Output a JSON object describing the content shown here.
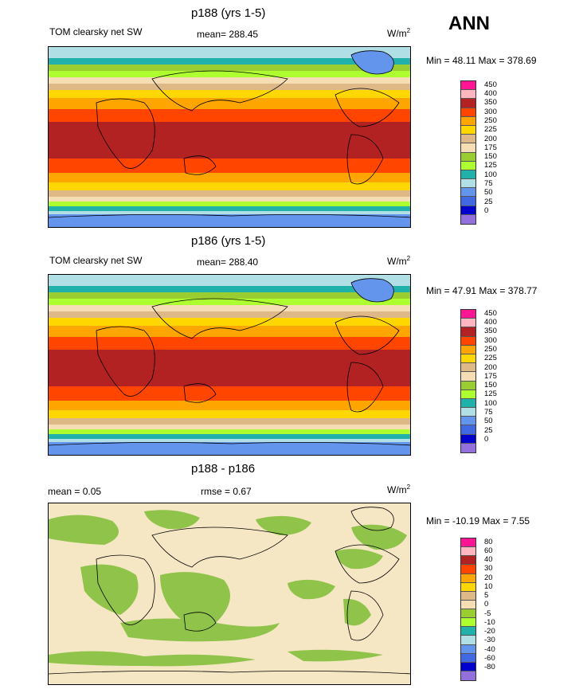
{
  "season": "ANN",
  "panels": [
    {
      "title": "p188 (yrs 1-5)",
      "left_label": "TOM clearsky net SW",
      "center_label": "mean= 288.45",
      "units_base": "W/m",
      "units_exp": "2",
      "minmax": "Min =  48.11 Max = 378.69",
      "levels": [
        "450",
        "400",
        "350",
        "300",
        "250",
        "225",
        "200",
        "175",
        "150",
        "125",
        "100",
        "75",
        "50",
        "25",
        "0"
      ],
      "colors": [
        "#ff1493",
        "#ffb6c1",
        "#b22222",
        "#ff4500",
        "#ffa500",
        "#ffd700",
        "#deb887",
        "#f5deb3",
        "#9acd32",
        "#adff2f",
        "#20b2aa",
        "#b0e0e6",
        "#6495ed",
        "#4169e1",
        "#0000cd",
        "#9370db"
      ]
    },
    {
      "title": "p186 (yrs 1-5)",
      "left_label": "TOM clearsky net SW",
      "center_label": "mean= 288.40",
      "units_base": "W/m",
      "units_exp": "2",
      "minmax": "Min =  47.91 Max = 378.77",
      "levels": [
        "450",
        "400",
        "350",
        "300",
        "250",
        "225",
        "200",
        "175",
        "150",
        "125",
        "100",
        "75",
        "50",
        "25",
        "0"
      ],
      "colors": [
        "#ff1493",
        "#ffb6c1",
        "#b22222",
        "#ff4500",
        "#ffa500",
        "#ffd700",
        "#deb887",
        "#f5deb3",
        "#9acd32",
        "#adff2f",
        "#20b2aa",
        "#b0e0e6",
        "#6495ed",
        "#4169e1",
        "#0000cd",
        "#9370db"
      ]
    },
    {
      "title": "p188 - p186",
      "left_label": "mean =   0.05",
      "center_label": "rmse =   0.67",
      "units_base": "W/m",
      "units_exp": "2",
      "minmax": "Min = -10.19 Max =   7.55",
      "levels": [
        "80",
        "60",
        "40",
        "30",
        "20",
        "10",
        "5",
        "0",
        "-5",
        "-10",
        "-20",
        "-30",
        "-40",
        "-60",
        "-80"
      ],
      "colors": [
        "#ff1493",
        "#ffb6c1",
        "#b22222",
        "#ff4500",
        "#ffa500",
        "#ffd700",
        "#deb887",
        "#f5deb3",
        "#9acd32",
        "#adff2f",
        "#20b2aa",
        "#b0e0e6",
        "#6495ed",
        "#4169e1",
        "#0000cd",
        "#9370db"
      ]
    }
  ],
  "chart_data": {
    "type": "heatmap",
    "season": "ANN",
    "maps": [
      {
        "title": "p188 (yrs 1-5)",
        "field": "TOM clearsky net SW",
        "mean": 288.45,
        "min": 48.11,
        "max": 378.69,
        "units": "W/m2"
      },
      {
        "title": "p186 (yrs 1-5)",
        "field": "TOM clearsky net SW",
        "mean": 288.4,
        "min": 47.91,
        "max": 378.77,
        "units": "W/m2"
      },
      {
        "title": "p188 - p186",
        "mean": 0.05,
        "rmse": 0.67,
        "min": -10.19,
        "max": 7.55,
        "units": "W/m2"
      }
    ],
    "color_levels": [
      [
        450,
        400,
        350,
        300,
        250,
        225,
        200,
        175,
        150,
        125,
        100,
        75,
        50,
        25,
        0
      ],
      [
        450,
        400,
        350,
        300,
        250,
        225,
        200,
        175,
        150,
        125,
        100,
        75,
        50,
        25,
        0
      ],
      [
        80,
        60,
        40,
        30,
        20,
        10,
        5,
        0,
        -5,
        -10,
        -20,
        -30,
        -40,
        -60,
        -80
      ]
    ]
  }
}
